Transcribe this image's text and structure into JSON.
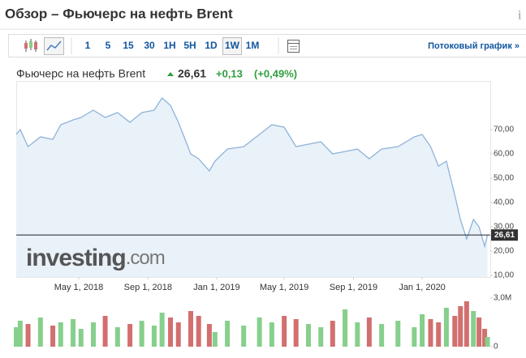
{
  "header": {
    "title": "Обзор – Фьючерс на нефть Brent",
    "info": "i"
  },
  "toolbar": {
    "intervals": [
      "1",
      "5",
      "15",
      "30",
      "1H",
      "5H",
      "1D",
      "1W",
      "1M"
    ],
    "active": "1W",
    "stream": "Потоковый график »"
  },
  "quote": {
    "name": "Фьючерс на нефть Brent",
    "price": "26,61",
    "change": "+0,13",
    "change_pct": "(+0,49%)"
  },
  "watermark": {
    "brand": "investing",
    "domain": ".com"
  },
  "chart_data": [
    {
      "type": "area",
      "color": "#8fb3da",
      "fill": "#e9f1f9",
      "x": [
        "2018-01-10",
        "2018-01-17",
        "2018-01-31",
        "2018-02-22",
        "2018-03-16",
        "2018-03-30",
        "2018-04-21",
        "2018-05-05",
        "2018-05-27",
        "2018-06-17",
        "2018-07-09",
        "2018-07-31",
        "2018-08-21",
        "2018-09-12",
        "2018-09-26",
        "2018-10-11",
        "2018-10-25",
        "2018-11-16",
        "2018-11-30",
        "2018-12-19",
        "2018-12-29",
        "2019-01-20",
        "2019-02-18",
        "2019-03-18",
        "2019-04-09",
        "2019-05-01",
        "2019-05-22",
        "2019-06-13",
        "2019-07-05",
        "2019-07-26",
        "2019-08-17",
        "2019-09-08",
        "2019-09-29",
        "2019-10-21",
        "2019-11-19",
        "2019-12-18",
        "2020-01-01",
        "2020-01-16",
        "2020-01-30",
        "2020-02-13",
        "2020-02-28",
        "2020-03-09",
        "2020-03-20",
        "2020-04-01",
        "2020-04-11",
        "2020-04-21",
        "2020-04-26"
      ],
      "values": [
        68,
        70,
        63,
        67,
        66,
        72,
        74,
        75,
        78,
        75,
        77,
        73,
        77,
        78,
        83,
        80,
        73,
        60,
        58,
        53,
        57,
        62,
        63,
        68,
        72,
        71,
        63,
        64,
        65,
        60,
        61,
        62,
        58,
        62,
        63,
        67,
        68,
        63,
        55,
        57,
        43,
        33,
        25,
        33,
        30,
        22,
        26.61
      ],
      "last": {
        "value": 26.61,
        "label": "26,61"
      },
      "xlim": [
        "2018-01-10",
        "2020-05-01"
      ],
      "xticks": [
        {
          "value": "2018-05-01",
          "label": "May 1, 2018"
        },
        {
          "value": "2018-09-01",
          "label": "Sep 1, 2018"
        },
        {
          "value": "2019-01-01",
          "label": "Jan 1, 2019"
        },
        {
          "value": "2019-05-01",
          "label": "May 1, 2019"
        },
        {
          "value": "2019-09-01",
          "label": "Sep 1, 2019"
        },
        {
          "value": "2020-01-01",
          "label": "Jan 1, 2020"
        }
      ],
      "ylim": [
        10,
        90
      ],
      "yticks": [
        {
          "value": 10,
          "label": "10,00"
        },
        {
          "value": 20,
          "label": "20,00"
        },
        {
          "value": 30,
          "label": "30,00"
        },
        {
          "value": 40,
          "label": "40,00"
        },
        {
          "value": 50,
          "label": "50,00"
        },
        {
          "value": 60,
          "label": "60,00"
        },
        {
          "value": 70,
          "label": "70,00"
        }
      ],
      "grid": false
    },
    {
      "type": "bar",
      "up_color": "#86cf8c",
      "down_color": "#d36f6f",
      "x": [
        "2018-01-10",
        "2018-01-17",
        "2018-01-31",
        "2018-02-22",
        "2018-03-16",
        "2018-03-30",
        "2018-04-21",
        "2018-05-05",
        "2018-05-27",
        "2018-06-17",
        "2018-07-09",
        "2018-07-31",
        "2018-08-21",
        "2018-09-12",
        "2018-09-26",
        "2018-10-11",
        "2018-10-25",
        "2018-11-16",
        "2018-11-30",
        "2018-12-19",
        "2018-12-29",
        "2019-01-20",
        "2019-02-18",
        "2019-03-18",
        "2019-04-09",
        "2019-05-01",
        "2019-05-22",
        "2019-06-13",
        "2019-07-05",
        "2019-07-26",
        "2019-08-17",
        "2019-09-08",
        "2019-09-29",
        "2019-10-21",
        "2019-11-19",
        "2019-12-18",
        "2020-01-01",
        "2020-01-16",
        "2020-01-30",
        "2020-02-13",
        "2020-02-28",
        "2020-03-09",
        "2020-03-20",
        "2020-04-01",
        "2020-04-11",
        "2020-04-21",
        "2020-04-26"
      ],
      "values": [
        1.2,
        1.6,
        1.4,
        1.8,
        1.3,
        1.5,
        1.7,
        1.1,
        1.5,
        1.9,
        1.2,
        1.4,
        1.6,
        1.3,
        2.1,
        1.8,
        1.5,
        2.2,
        1.9,
        1.4,
        0.9,
        1.6,
        1.3,
        1.8,
        1.5,
        1.9,
        1.7,
        1.4,
        1.2,
        1.6,
        2.3,
        1.5,
        1.8,
        1.4,
        1.6,
        1.2,
        2.0,
        1.7,
        1.5,
        2.4,
        1.9,
        2.5,
        2.8,
        2.2,
        1.8,
        1.1,
        0.6
      ],
      "xlim": [
        "2018-01-10",
        "2020-05-01"
      ],
      "ylim": [
        0,
        3.3
      ],
      "yticks": [
        0,
        {
          "value": 3,
          "label": "3,0M"
        }
      ]
    }
  ]
}
